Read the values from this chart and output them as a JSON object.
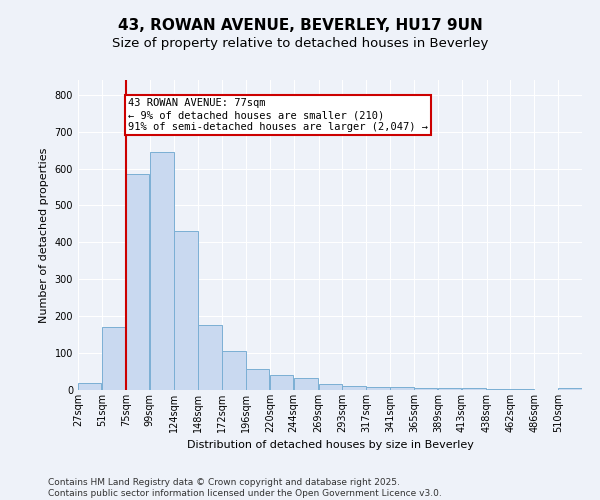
{
  "title1": "43, ROWAN AVENUE, BEVERLEY, HU17 9UN",
  "title2": "Size of property relative to detached houses in Beverley",
  "xlabel": "Distribution of detached houses by size in Beverley",
  "ylabel": "Number of detached properties",
  "bins": [
    27,
    51,
    75,
    99,
    124,
    148,
    172,
    196,
    220,
    244,
    269,
    293,
    317,
    341,
    365,
    389,
    413,
    438,
    462,
    486,
    510
  ],
  "values": [
    20,
    170,
    585,
    645,
    430,
    175,
    105,
    57,
    42,
    32,
    15,
    12,
    9,
    7,
    6,
    5,
    6,
    3,
    2,
    1,
    5
  ],
  "bar_color": "#c9d9f0",
  "bar_edge_color": "#7bafd4",
  "red_line_x": 75,
  "annotation_title": "43 ROWAN AVENUE: 77sqm",
  "annotation_line1": "← 9% of detached houses are smaller (210)",
  "annotation_line2": "91% of semi-detached houses are larger (2,047) →",
  "annotation_box_color": "#ffffff",
  "annotation_border_color": "#cc0000",
  "ylim": [
    0,
    840
  ],
  "yticks": [
    0,
    100,
    200,
    300,
    400,
    500,
    600,
    700,
    800
  ],
  "tick_labels": [
    "27sqm",
    "51sqm",
    "75sqm",
    "99sqm",
    "124sqm",
    "148sqm",
    "172sqm",
    "196sqm",
    "220sqm",
    "244sqm",
    "269sqm",
    "293sqm",
    "317sqm",
    "341sqm",
    "365sqm",
    "389sqm",
    "413sqm",
    "438sqm",
    "462sqm",
    "486sqm",
    "510sqm"
  ],
  "footer1": "Contains HM Land Registry data © Crown copyright and database right 2025.",
  "footer2": "Contains public sector information licensed under the Open Government Licence v3.0.",
  "background_color": "#eef2f9",
  "grid_color": "#ffffff",
  "title_fontsize": 11,
  "subtitle_fontsize": 9.5,
  "axis_label_fontsize": 8,
  "tick_fontsize": 7,
  "footer_fontsize": 6.5,
  "annotation_fontsize": 7.5
}
